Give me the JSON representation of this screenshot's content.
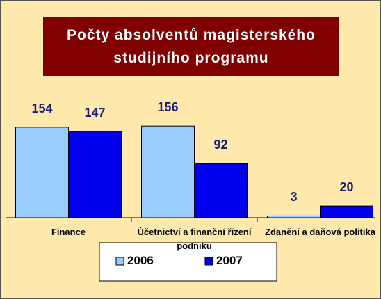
{
  "chart_data": {
    "type": "bar",
    "title": "Počty absolventů magisterského studijního programu",
    "categories": [
      "Finance",
      "Účetnictví a finanční řízení podniku",
      "Zdanění a daňová politika"
    ],
    "series": [
      {
        "name": "2006",
        "color": "#99ccff",
        "values": [
          154,
          156,
          3
        ]
      },
      {
        "name": "2007",
        "color": "#0000ee",
        "values": [
          147,
          92,
          20
        ]
      }
    ],
    "ylim": [
      0,
      200
    ],
    "legend": "bottom"
  }
}
